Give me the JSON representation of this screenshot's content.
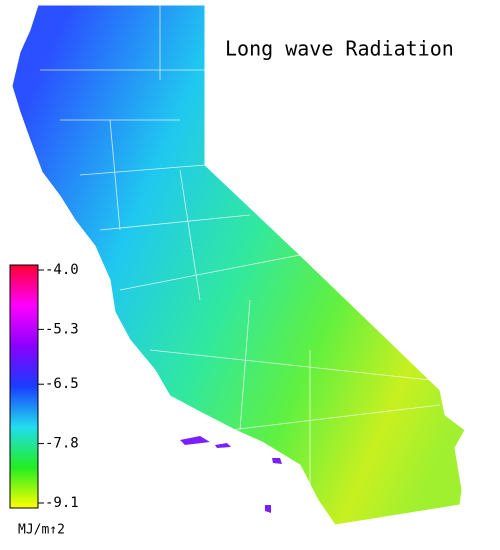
{
  "title": "Long wave Radiation",
  "colorbar": {
    "lim": [
      -9.1,
      -4.0
    ],
    "ticks": [
      {
        "value": -4.0,
        "label": "-4.0"
      },
      -5.3,
      -6.5,
      -7.8,
      -9.1
    ],
    "colors": [
      "#ffff00",
      "#22ee22",
      "#22ddee",
      "#1a3cff",
      "#8a00ff",
      "#ff00ff",
      "#ff0033"
    ],
    "label": "MJ/m↑2"
  }
}
